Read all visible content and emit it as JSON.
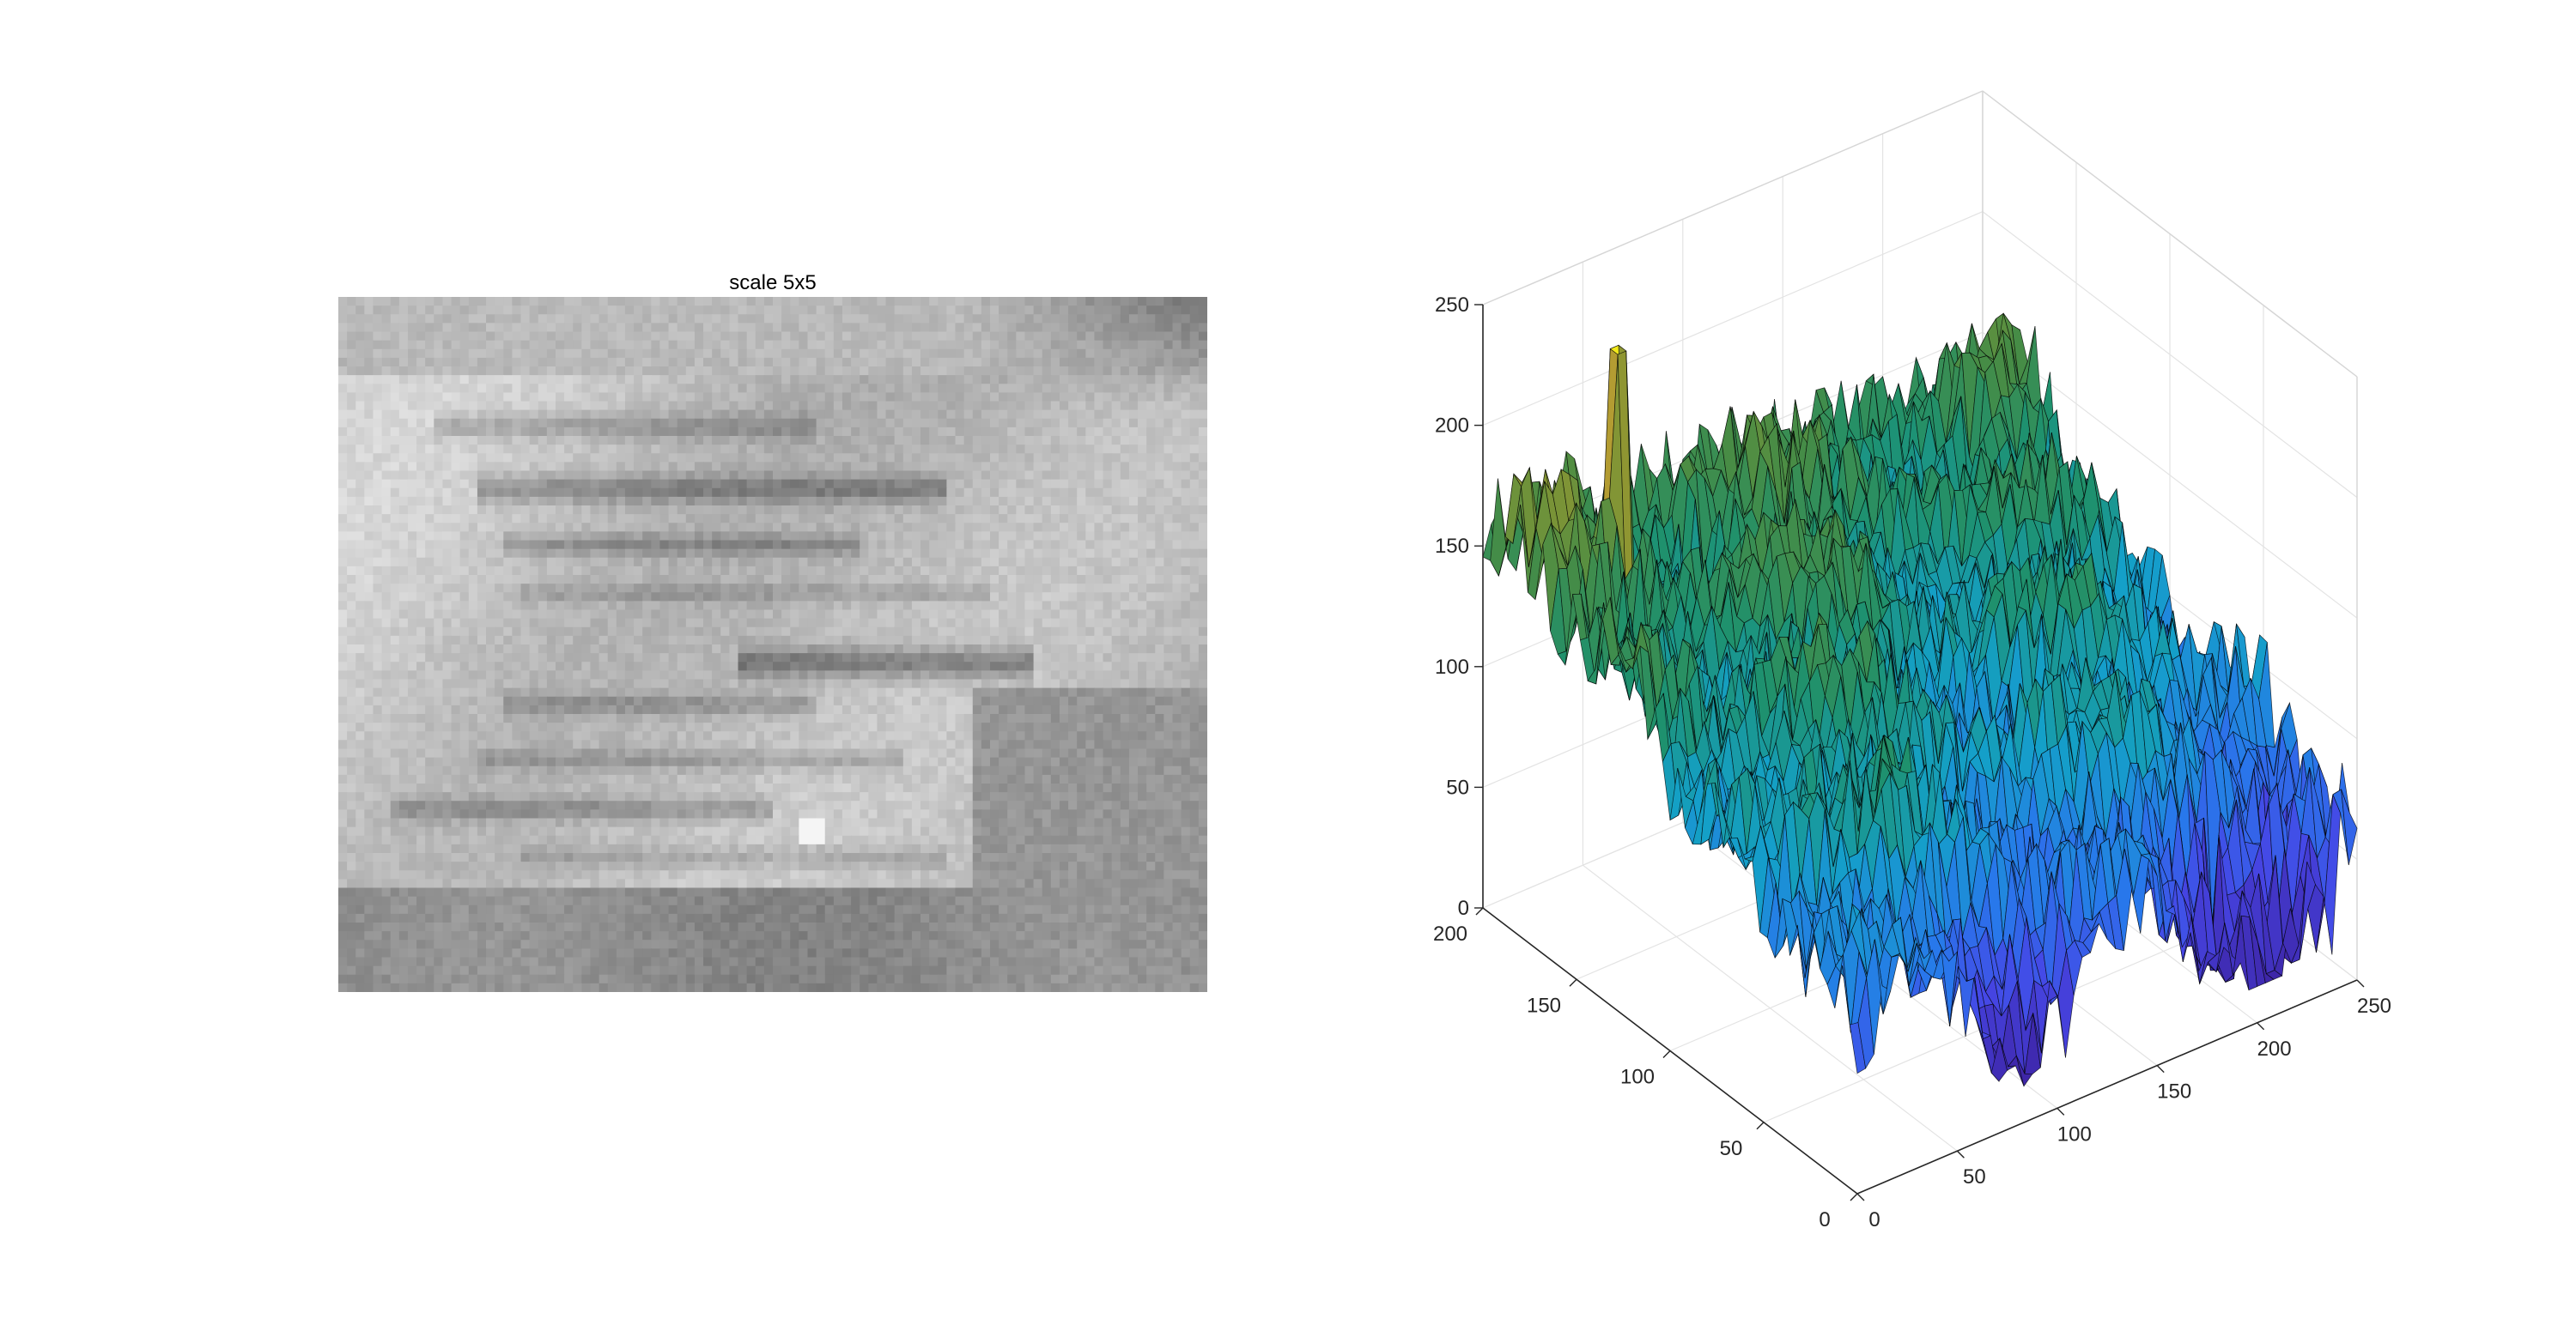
{
  "figure": {
    "background": "#ffffff"
  },
  "chart_data": [
    {
      "type": "heatmap",
      "title": "scale 5x5",
      "colormap": "gray",
      "xlabel": "",
      "ylabel": "",
      "grid": false,
      "legend": "none"
    },
    {
      "type": "surface",
      "title": "",
      "colormap": "parula",
      "edge_color": "#000000",
      "x_ticks": [
        0,
        50,
        100,
        150,
        200,
        250
      ],
      "y_ticks": [
        0,
        50,
        100,
        150,
        200
      ],
      "z_ticks": [
        0,
        50,
        100,
        150,
        200,
        250
      ],
      "xlim": [
        0,
        250
      ],
      "ylim": [
        0,
        200
      ],
      "zlim": [
        0,
        250
      ],
      "grid": true,
      "legend": "none",
      "z_range_observed": [
        30,
        235
      ],
      "notable_peak_z": 235
    }
  ]
}
